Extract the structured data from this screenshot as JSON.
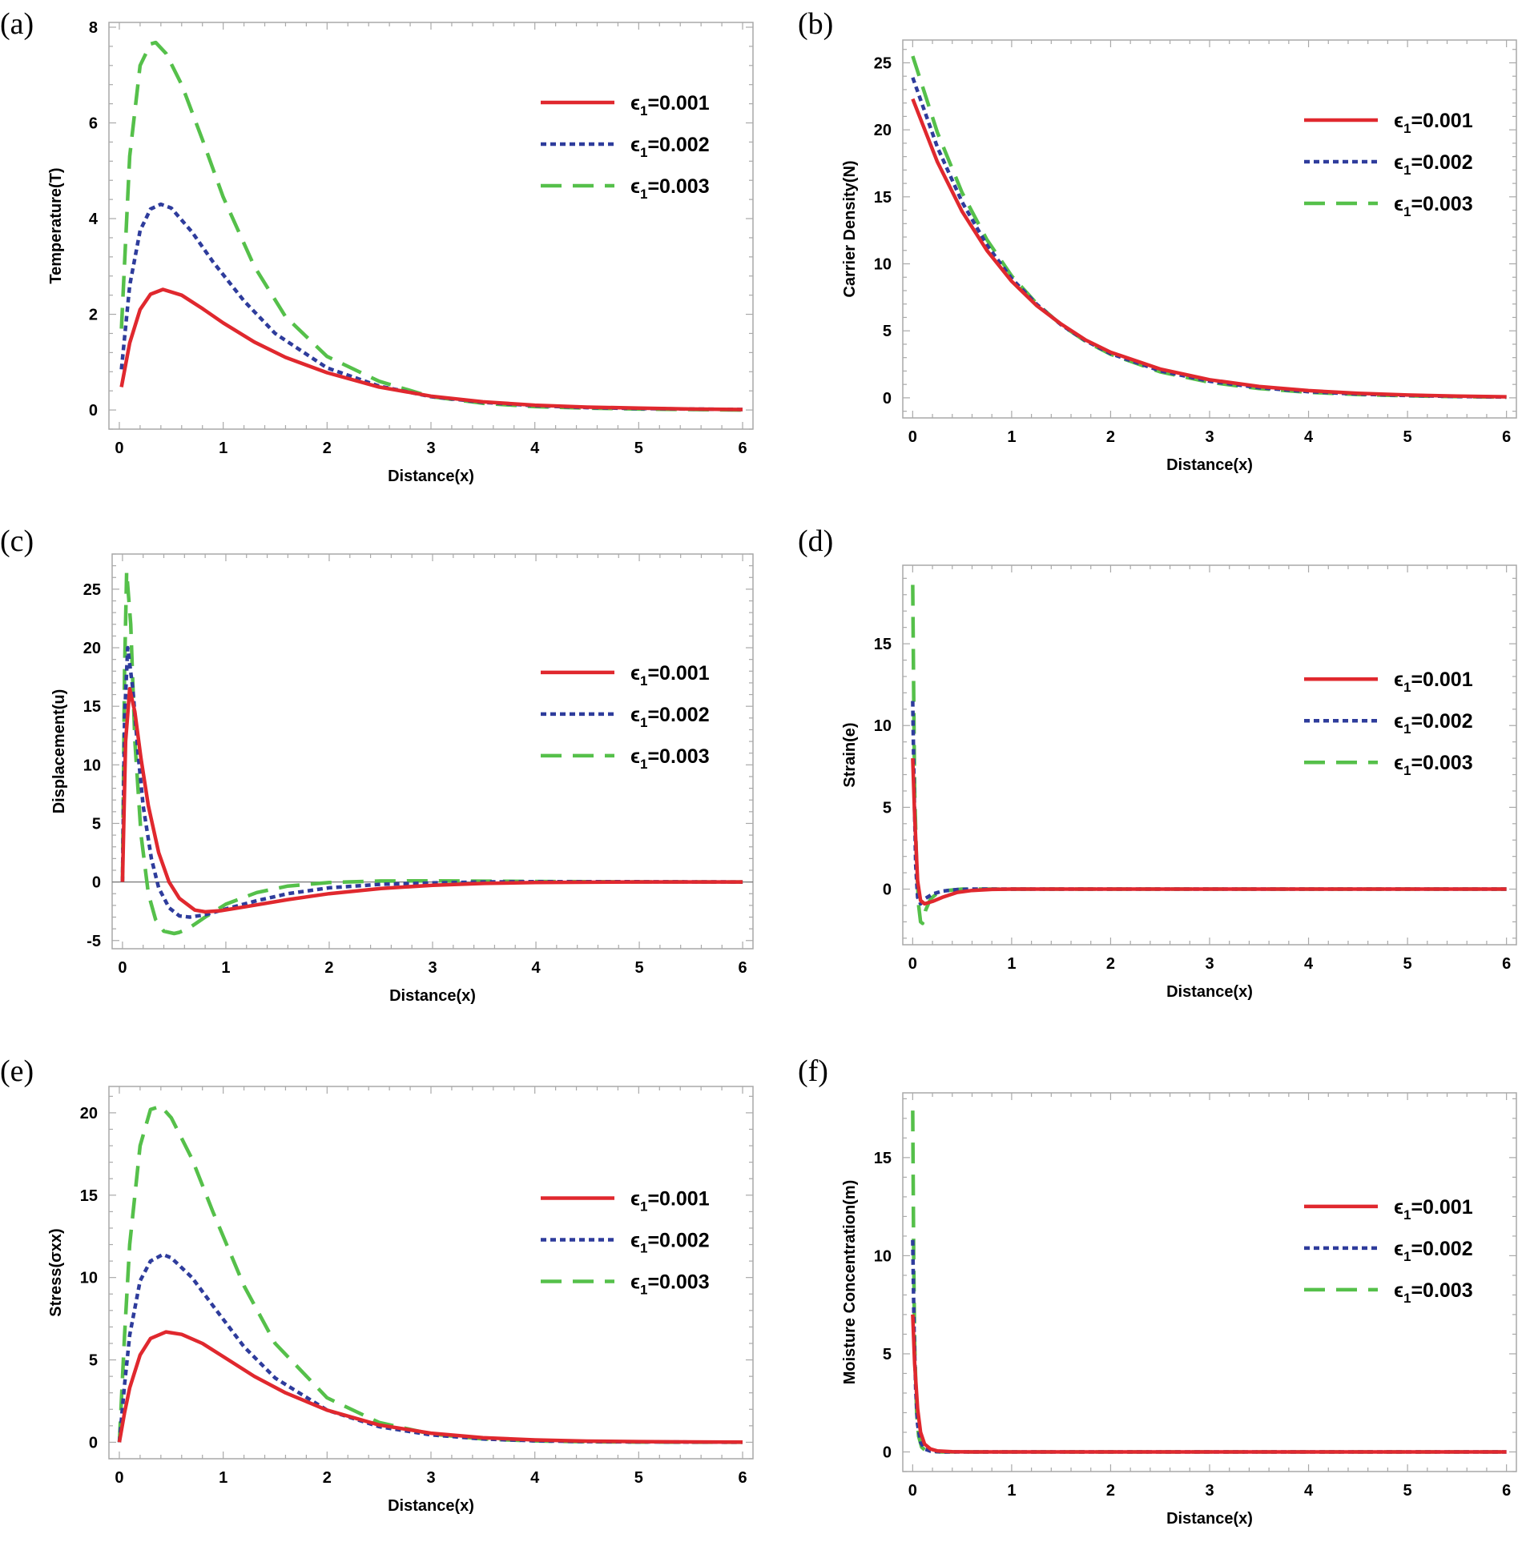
{
  "figure": {
    "panels": [
      "(a)",
      "(b)",
      "(c)",
      "(d)",
      "(e)",
      "(f)"
    ]
  },
  "legend": {
    "symbol": "ϵ",
    "subscript": "1",
    "entries": [
      "=0.001",
      "=0.002",
      "=0.003"
    ]
  },
  "colors": {
    "series_0.001": "#e0282e",
    "series_0.002": "#2e3c9c",
    "series_0.003": "#55c04a",
    "frame": "#a9a9a9",
    "zero_line": "#777777"
  },
  "chart_data": [
    {
      "panel": "(a)",
      "type": "line",
      "xlabel": "Distance(x)",
      "ylabel": "Temperature(T)",
      "xlim": [
        -0.1,
        6.1
      ],
      "ylim": [
        -0.4,
        8.1
      ],
      "xticks": [
        0,
        1,
        2,
        3,
        4,
        5,
        6
      ],
      "yticks": [
        0,
        2,
        4,
        6,
        8
      ],
      "legend_position": "top-right",
      "zero_line": false,
      "grid": false,
      "series": [
        {
          "name": "ϵ1=0.001",
          "x": [
            0.02,
            0.1,
            0.2,
            0.3,
            0.42,
            0.6,
            0.8,
            1.0,
            1.3,
            1.6,
            2.0,
            2.5,
            3.0,
            3.5,
            4.0,
            4.5,
            5.0,
            5.5,
            6.0
          ],
          "y": [
            0.48,
            1.4,
            2.1,
            2.42,
            2.52,
            2.4,
            2.12,
            1.82,
            1.42,
            1.1,
            0.78,
            0.48,
            0.29,
            0.17,
            0.1,
            0.06,
            0.04,
            0.02,
            0.01
          ]
        },
        {
          "name": "ϵ1=0.002",
          "x": [
            0.02,
            0.1,
            0.2,
            0.3,
            0.4,
            0.5,
            0.7,
            0.9,
            1.2,
            1.5,
            2.0,
            2.5,
            3.0,
            3.5,
            4.0,
            4.5,
            5.0,
            5.5,
            6.0
          ],
          "y": [
            0.85,
            2.6,
            3.75,
            4.2,
            4.3,
            4.22,
            3.72,
            3.1,
            2.28,
            1.6,
            0.88,
            0.5,
            0.28,
            0.16,
            0.09,
            0.05,
            0.03,
            0.02,
            0.01
          ]
        },
        {
          "name": "ϵ1=0.003",
          "x": [
            0.02,
            0.1,
            0.2,
            0.3,
            0.35,
            0.45,
            0.6,
            0.8,
            1.0,
            1.3,
            1.6,
            2.0,
            2.5,
            3.0,
            3.5,
            4.0,
            4.5,
            5.0,
            5.5,
            6.0
          ],
          "y": [
            1.7,
            5.3,
            7.2,
            7.65,
            7.68,
            7.45,
            6.8,
            5.65,
            4.45,
            3.0,
            1.95,
            1.12,
            0.6,
            0.28,
            0.14,
            0.07,
            0.04,
            0.02,
            0.01,
            0.0
          ]
        }
      ]
    },
    {
      "panel": "(b)",
      "type": "line",
      "xlabel": "Distance(x)",
      "ylabel": "Carrier Density(N)",
      "xlim": [
        -0.1,
        6.1
      ],
      "ylim": [
        -1.5,
        26.7
      ],
      "xticks": [
        0,
        1,
        2,
        3,
        4,
        5,
        6
      ],
      "yticks": [
        0,
        5,
        10,
        15,
        20,
        25
      ],
      "legend_position": "top-right",
      "zero_line": false,
      "grid": false,
      "series": [
        {
          "name": "ϵ1=0.001",
          "x": [
            0,
            0.25,
            0.5,
            0.75,
            1.0,
            1.25,
            1.5,
            1.75,
            2.0,
            2.5,
            3.0,
            3.5,
            4.0,
            4.5,
            5.0,
            5.5,
            6.0
          ],
          "y": [
            22.3,
            17.6,
            13.9,
            11.0,
            8.7,
            6.9,
            5.5,
            4.3,
            3.4,
            2.15,
            1.35,
            0.85,
            0.54,
            0.34,
            0.21,
            0.13,
            0.08
          ]
        },
        {
          "name": "ϵ1=0.002",
          "x": [
            0,
            0.25,
            0.5,
            0.75,
            1.0,
            1.25,
            1.5,
            1.75,
            2.0,
            2.5,
            3.0,
            3.5,
            4.0,
            4.5,
            5.0,
            5.5,
            6.0
          ],
          "y": [
            23.9,
            18.7,
            14.6,
            11.4,
            8.9,
            7.0,
            5.45,
            4.25,
            3.3,
            2.02,
            1.24,
            0.76,
            0.46,
            0.28,
            0.17,
            0.1,
            0.06
          ]
        },
        {
          "name": "ϵ1=0.003",
          "x": [
            0,
            0.25,
            0.5,
            0.75,
            1.0,
            1.25,
            1.5,
            1.75,
            2.0,
            2.5,
            3.0,
            3.5,
            4.0,
            4.5,
            5.0,
            5.5,
            6.0
          ],
          "y": [
            25.5,
            19.8,
            15.3,
            11.8,
            9.1,
            7.05,
            5.45,
            4.2,
            3.25,
            1.94,
            1.16,
            0.69,
            0.41,
            0.25,
            0.15,
            0.09,
            0.05
          ]
        }
      ]
    },
    {
      "panel": "(c)",
      "type": "line",
      "xlabel": "Distance(x)",
      "ylabel": "Displacement(u)",
      "xlim": [
        -0.1,
        6.1
      ],
      "ylim": [
        -5.7,
        28.0
      ],
      "xticks": [
        0,
        1,
        2,
        3,
        4,
        5,
        6
      ],
      "yticks": [
        -5,
        0,
        5,
        10,
        15,
        20,
        25
      ],
      "legend_position": "center-right",
      "zero_line": true,
      "grid": false,
      "series": [
        {
          "name": "ϵ1=0.001",
          "x": [
            0.0,
            0.03,
            0.07,
            0.12,
            0.18,
            0.25,
            0.35,
            0.45,
            0.55,
            0.7,
            0.8,
            0.95,
            1.2,
            1.6,
            2.0,
            2.5,
            3.0,
            3.5,
            4.0,
            5.0,
            6.0
          ],
          "y": [
            0,
            12,
            16.5,
            14.5,
            10.5,
            6.5,
            2.5,
            0.0,
            -1.4,
            -2.4,
            -2.55,
            -2.45,
            -2.1,
            -1.5,
            -1.0,
            -0.55,
            -0.28,
            -0.12,
            -0.05,
            0.0,
            0.0
          ]
        },
        {
          "name": "ϵ1=0.002",
          "x": [
            0.0,
            0.02,
            0.05,
            0.1,
            0.15,
            0.2,
            0.28,
            0.35,
            0.45,
            0.55,
            0.65,
            0.8,
            1.0,
            1.3,
            1.6,
            2.0,
            2.5,
            3.0,
            3.5,
            4.0,
            5.0,
            6.0
          ],
          "y": [
            0,
            14,
            20,
            16.5,
            11,
            6.5,
            2.0,
            -0.5,
            -2.2,
            -2.9,
            -3.0,
            -2.8,
            -2.3,
            -1.6,
            -1.0,
            -0.5,
            -0.2,
            -0.08,
            0.0,
            0.03,
            0.02,
            0.0
          ]
        },
        {
          "name": "ϵ1=0.003",
          "x": [
            0.0,
            0.02,
            0.04,
            0.08,
            0.12,
            0.18,
            0.25,
            0.32,
            0.4,
            0.5,
            0.55,
            0.65,
            0.8,
            1.0,
            1.3,
            1.6,
            2.0,
            2.5,
            3.0,
            3.5,
            4.0,
            5.0,
            6.0
          ],
          "y": [
            0,
            18,
            26.5,
            22,
            12,
            4.0,
            -1.0,
            -3.2,
            -4.2,
            -4.4,
            -4.3,
            -3.9,
            -3.0,
            -1.9,
            -0.9,
            -0.35,
            -0.05,
            0.08,
            0.1,
            0.07,
            0.04,
            0.01,
            0.0
          ]
        }
      ]
    },
    {
      "panel": "(d)",
      "type": "line",
      "xlabel": "Distance(x)",
      "ylabel": "Strain(e)",
      "xlim": [
        -0.1,
        6.1
      ],
      "ylim": [
        -3.4,
        19.8
      ],
      "xticks": [
        0,
        1,
        2,
        3,
        4,
        5,
        6
      ],
      "yticks": [
        0,
        5,
        10,
        15
      ],
      "legend_position": "center-right",
      "zero_line": false,
      "grid": false,
      "series": [
        {
          "name": "ϵ1=0.001",
          "x": [
            0.0,
            0.02,
            0.05,
            0.08,
            0.12,
            0.2,
            0.3,
            0.45,
            0.6,
            0.8,
            1.0,
            2.0,
            3.0,
            4.0,
            5.0,
            6.0
          ],
          "y": [
            8.0,
            4.5,
            0.5,
            -0.7,
            -0.9,
            -0.75,
            -0.5,
            -0.2,
            -0.08,
            -0.02,
            0.0,
            0.0,
            0.0,
            0.0,
            0.0,
            0.0
          ]
        },
        {
          "name": "ϵ1=0.002",
          "x": [
            0.0,
            0.015,
            0.03,
            0.05,
            0.08,
            0.12,
            0.2,
            0.3,
            0.45,
            0.6,
            0.8,
            1.0,
            2.0,
            3.0,
            4.0,
            5.0,
            6.0
          ],
          "y": [
            11.5,
            6.0,
            1.5,
            -0.5,
            -0.9,
            -0.6,
            -0.3,
            -0.12,
            -0.03,
            0.0,
            0.0,
            0.0,
            0.0,
            0.0,
            0.0,
            0.0,
            0.0
          ]
        },
        {
          "name": "ϵ1=0.003",
          "x": [
            0.0,
            0.01,
            0.02,
            0.04,
            0.06,
            0.08,
            0.1,
            0.13,
            0.18,
            0.25,
            0.35,
            0.5,
            0.7,
            1.0,
            2.0,
            3.0,
            4.0,
            5.0,
            6.0
          ],
          "y": [
            18.6,
            12.0,
            6.0,
            1.5,
            -1.0,
            -2.0,
            -2.1,
            -1.3,
            -0.6,
            -0.25,
            -0.08,
            0.0,
            0.0,
            0.0,
            0.0,
            0.0,
            0.0,
            0.0,
            0.0
          ]
        }
      ]
    },
    {
      "panel": "(e)",
      "type": "line",
      "xlabel": "Distance(x)",
      "ylabel": "Stress(σxx)",
      "xlim": [
        -0.1,
        6.1
      ],
      "ylim": [
        -1.0,
        21.6
      ],
      "xticks": [
        0,
        1,
        2,
        3,
        4,
        5,
        6
      ],
      "yticks": [
        0,
        5,
        10,
        15,
        20
      ],
      "legend_position": "center-right",
      "zero_line": false,
      "grid": false,
      "series": [
        {
          "name": "ϵ1=0.001",
          "x": [
            0.0,
            0.05,
            0.1,
            0.2,
            0.3,
            0.45,
            0.6,
            0.8,
            1.0,
            1.3,
            1.6,
            2.0,
            2.5,
            3.0,
            3.5,
            4.0,
            4.5,
            5.0,
            5.5,
            6.0
          ],
          "y": [
            0.0,
            1.8,
            3.3,
            5.3,
            6.3,
            6.7,
            6.55,
            6.0,
            5.2,
            4.0,
            3.0,
            1.95,
            1.05,
            0.55,
            0.28,
            0.14,
            0.07,
            0.04,
            0.02,
            0.01
          ]
        },
        {
          "name": "ϵ1=0.002",
          "x": [
            0.0,
            0.05,
            0.1,
            0.2,
            0.3,
            0.42,
            0.5,
            0.7,
            0.9,
            1.2,
            1.5,
            2.0,
            2.5,
            3.0,
            3.5,
            4.0,
            4.5,
            5.0,
            5.5,
            6.0
          ],
          "y": [
            0.0,
            3.5,
            6.5,
            9.8,
            11.0,
            11.4,
            11.2,
            10.0,
            8.3,
            5.8,
            3.9,
            1.95,
            0.95,
            0.45,
            0.2,
            0.09,
            0.04,
            0.02,
            0.01,
            0.0
          ]
        },
        {
          "name": "ϵ1=0.003",
          "x": [
            0.0,
            0.05,
            0.1,
            0.2,
            0.3,
            0.4,
            0.5,
            0.7,
            0.9,
            1.2,
            1.5,
            2.0,
            2.5,
            3.0,
            3.5,
            4.0,
            4.5,
            5.0,
            5.5,
            6.0
          ],
          "y": [
            0.0,
            6.5,
            12.0,
            18.0,
            20.2,
            20.4,
            19.7,
            17.2,
            14.0,
            9.5,
            6.0,
            2.7,
            1.2,
            0.5,
            0.2,
            0.08,
            0.03,
            0.01,
            0.0,
            0.0
          ]
        }
      ]
    },
    {
      "panel": "(f)",
      "type": "line",
      "xlabel": "Distance(x)",
      "ylabel": "Moisture Concentration(m)",
      "xlim": [
        -0.1,
        6.1
      ],
      "ylim": [
        -1.0,
        18.3
      ],
      "xticks": [
        0,
        1,
        2,
        3,
        4,
        5,
        6
      ],
      "yticks": [
        0,
        5,
        10,
        15
      ],
      "legend_position": "center-right",
      "zero_line": false,
      "grid": false,
      "series": [
        {
          "name": "ϵ1=0.001",
          "x": [
            0.0,
            0.02,
            0.05,
            0.08,
            0.12,
            0.18,
            0.25,
            0.4,
            0.6,
            1.0,
            2.0,
            3.0,
            4.0,
            5.0,
            6.0
          ],
          "y": [
            7.0,
            4.5,
            2.2,
            1.0,
            0.4,
            0.15,
            0.05,
            0.01,
            0.0,
            0.0,
            0.0,
            0.0,
            0.0,
            0.0,
            0.0
          ]
        },
        {
          "name": "ϵ1=0.002",
          "x": [
            0.0,
            0.015,
            0.03,
            0.05,
            0.08,
            0.12,
            0.18,
            0.3,
            0.5,
            1.0,
            2.0,
            3.0,
            4.0,
            5.0,
            6.0
          ],
          "y": [
            10.8,
            6.0,
            3.2,
            1.4,
            0.5,
            0.15,
            0.04,
            0.0,
            0.0,
            0.0,
            0.0,
            0.0,
            0.0,
            0.0,
            0.0
          ]
        },
        {
          "name": "ϵ1=0.003",
          "x": [
            0.0,
            0.01,
            0.02,
            0.04,
            0.06,
            0.09,
            0.13,
            0.2,
            0.3,
            0.5,
            1.0,
            2.0,
            3.0,
            4.0,
            5.0,
            6.0
          ],
          "y": [
            17.4,
            10.0,
            5.5,
            2.0,
            0.8,
            0.25,
            0.07,
            0.01,
            0.0,
            0.0,
            0.0,
            0.0,
            0.0,
            0.0,
            0.0,
            0.0
          ]
        }
      ]
    }
  ]
}
